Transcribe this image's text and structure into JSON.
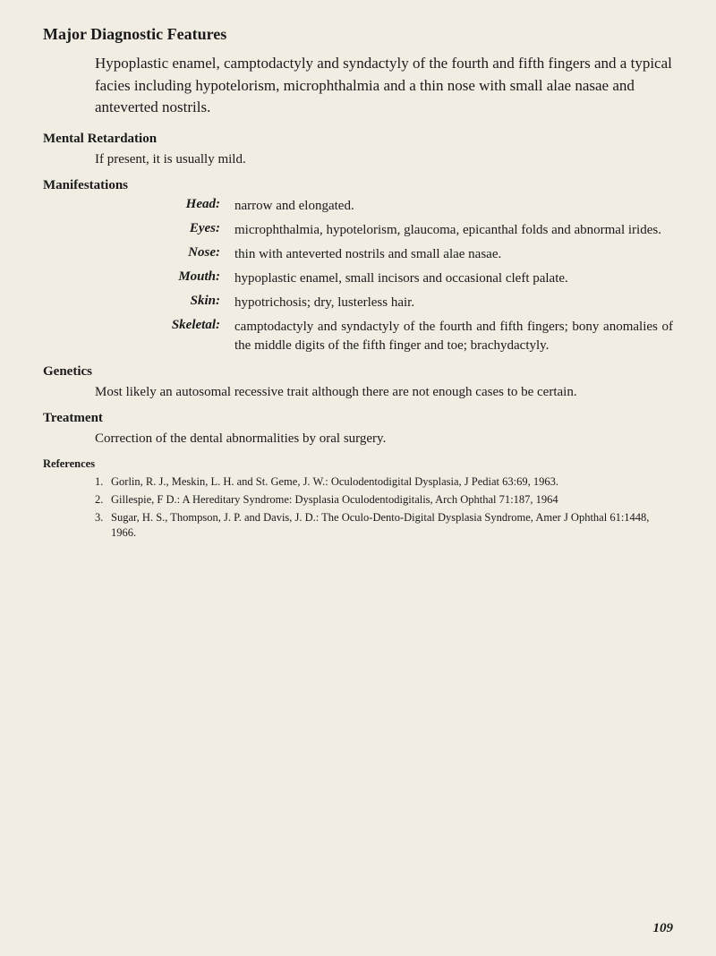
{
  "title": "Major Diagnostic Features",
  "intro": "Hypoplastic enamel, camptodactyly and syndactyly of the fourth and fifth fingers and a typical facies including hypotelorism, microphthalmia and a thin nose with small alae nasae and anteverted nostrils.",
  "sections": {
    "mental": {
      "heading": "Mental Retardation",
      "body": "If present, it is usually mild."
    },
    "manifestations": {
      "heading": "Manifestations",
      "rows": [
        {
          "label": "Head:",
          "value": "narrow and elongated."
        },
        {
          "label": "Eyes:",
          "value": "microphthalmia, hypotelorism, glaucoma, epicanthal folds and abnormal irides."
        },
        {
          "label": "Nose:",
          "value": "thin with anteverted nostrils and small alae nasae."
        },
        {
          "label": "Mouth:",
          "value": "hypoplastic enamel, small incisors and occasional cleft palate."
        },
        {
          "label": "Skin:",
          "value": "hypotrichosis; dry, lusterless hair."
        },
        {
          "label": "Skeletal:",
          "value": "camptodactyly and syndactyly of the fourth and fifth fingers; bony anomalies of the middle digits of the fifth finger and toe; brachydactyly."
        }
      ]
    },
    "genetics": {
      "heading": "Genetics",
      "body": "Most likely an autosomal recessive trait although there are not enough cases to be certain."
    },
    "treatment": {
      "heading": "Treatment",
      "body": "Correction of the dental abnormalities by oral surgery."
    },
    "references": {
      "heading": "References",
      "items": [
        "Gorlin, R. J., Meskin, L. H. and St. Geme, J. W.: Oculodentodigital Dysplasia, J Pediat 63:69, 1963.",
        "Gillespie, F D.: A Hereditary Syndrome: Dysplasia Oculodentodigitalis, Arch Ophthal 71:187, 1964",
        "Sugar, H. S., Thompson, J. P. and Davis, J. D.: The Oculo-Dento-Digital Dysplasia Syndrome, Amer J Ophthal 61:1448, 1966."
      ]
    }
  },
  "page_number": "109"
}
